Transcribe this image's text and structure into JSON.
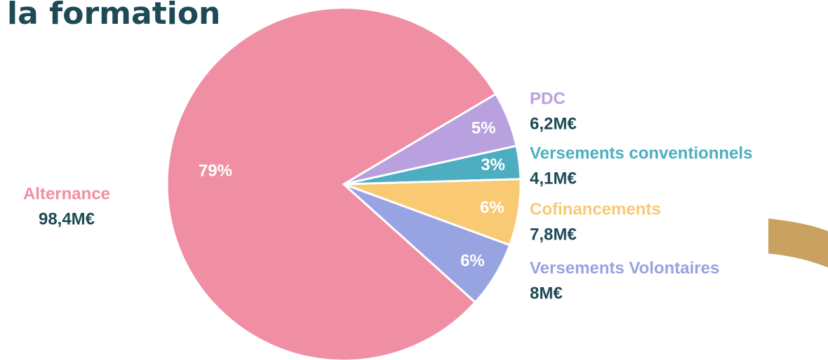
{
  "chart_data": {
    "type": "pie",
    "title": "la formation",
    "categories": [
      "Alternance",
      "PDC",
      "Versements conventionnels",
      "Cofinancements",
      "Versements Volontaires"
    ],
    "values": [
      79,
      5,
      3,
      6,
      6
    ],
    "value_labels": [
      "79%",
      "5%",
      "3%",
      "6%",
      "6%"
    ],
    "amounts": [
      98.4,
      6.2,
      4.1,
      7.8,
      8
    ],
    "amount_labels": [
      "98,4M€",
      "6,2M€",
      "4,1M€",
      "7,8M€",
      "8M€"
    ],
    "colors": [
      "#f08fa3",
      "#b9a0df",
      "#4daec1",
      "#f9c974",
      "#98a3e2"
    ]
  }
}
